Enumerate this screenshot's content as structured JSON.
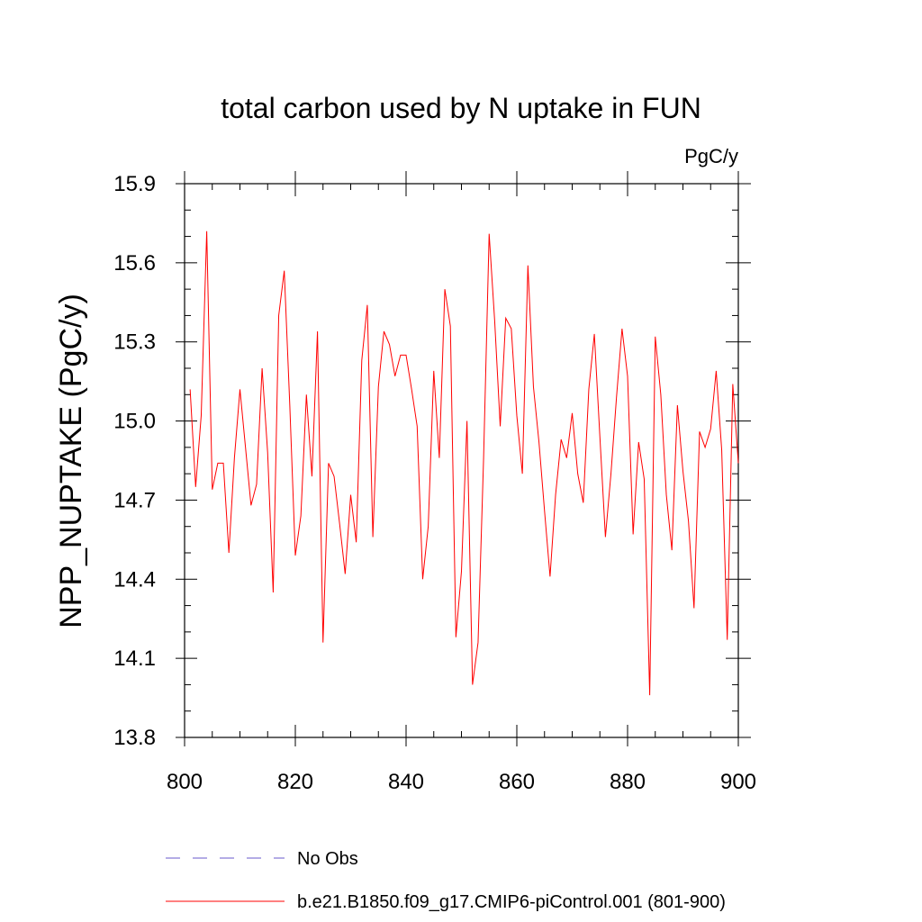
{
  "chart_data": {
    "type": "line",
    "title": "total carbon used by N uptake in FUN",
    "units_label": "PgC/y",
    "ylabel": "NPP_NUPTAKE  (PgC/y)",
    "xlabel": "",
    "xlim": [
      800,
      900
    ],
    "ylim": [
      13.8,
      15.9
    ],
    "x_ticks": [
      800,
      820,
      840,
      860,
      880,
      900
    ],
    "y_ticks": [
      13.8,
      14.1,
      14.4,
      14.7,
      15.0,
      15.3,
      15.6,
      15.9
    ],
    "x_tick_labels": [
      "800",
      "820",
      "840",
      "860",
      "880",
      "900"
    ],
    "y_tick_labels": [
      "13.8",
      "14.1",
      "14.4",
      "14.7",
      "15.0",
      "15.3",
      "15.6",
      "15.9"
    ],
    "legend_position": "bottom",
    "series": [
      {
        "name": "b.e21.B1850.f09_g17.CMIP6-piControl.001 (801-900)",
        "color": "#ff0000",
        "style": "solid",
        "x": [
          801,
          802,
          803,
          804,
          805,
          806,
          807,
          808,
          809,
          810,
          811,
          812,
          813,
          814,
          815,
          816,
          817,
          818,
          819,
          820,
          821,
          822,
          823,
          824,
          825,
          826,
          827,
          828,
          829,
          830,
          831,
          832,
          833,
          834,
          835,
          836,
          837,
          838,
          839,
          840,
          841,
          842,
          843,
          844,
          845,
          846,
          847,
          848,
          849,
          850,
          851,
          852,
          853,
          854,
          855,
          856,
          857,
          858,
          859,
          860,
          861,
          862,
          863,
          864,
          865,
          866,
          867,
          868,
          869,
          870,
          871,
          872,
          873,
          874,
          875,
          876,
          877,
          878,
          879,
          880,
          881,
          882,
          883,
          884,
          885,
          886,
          887,
          888,
          889,
          890,
          891,
          892,
          893,
          894,
          895,
          896,
          897,
          898,
          899,
          900
        ],
        "values": [
          15.12,
          14.75,
          15.02,
          15.72,
          14.74,
          14.84,
          14.84,
          14.5,
          14.86,
          15.12,
          14.9,
          14.68,
          14.76,
          15.2,
          14.88,
          14.35,
          15.4,
          15.57,
          15.06,
          14.49,
          14.64,
          15.1,
          14.79,
          15.34,
          14.16,
          14.84,
          14.79,
          14.61,
          14.42,
          14.72,
          14.54,
          15.23,
          15.44,
          14.56,
          15.13,
          15.34,
          15.29,
          15.17,
          15.25,
          15.25,
          15.12,
          14.98,
          14.4,
          14.6,
          15.19,
          14.86,
          15.5,
          15.36,
          14.18,
          14.43,
          15.0,
          14.0,
          14.16,
          14.86,
          15.71,
          15.38,
          14.98,
          15.39,
          15.35,
          15.02,
          14.8,
          15.59,
          15.13,
          14.92,
          14.66,
          14.41,
          14.72,
          14.93,
          14.86,
          15.03,
          14.8,
          14.69,
          15.12,
          15.33,
          14.94,
          14.56,
          14.8,
          15.09,
          15.35,
          15.17,
          14.57,
          14.92,
          14.78,
          13.96,
          15.32,
          15.1,
          14.72,
          14.51,
          15.06,
          14.81,
          14.62,
          14.29,
          14.96,
          14.9,
          14.97,
          15.19,
          14.89,
          14.17,
          15.14,
          14.84
        ]
      },
      {
        "name": "No Obs",
        "color": "#6a5acd",
        "style": "dashed",
        "x": [],
        "values": []
      }
    ]
  }
}
